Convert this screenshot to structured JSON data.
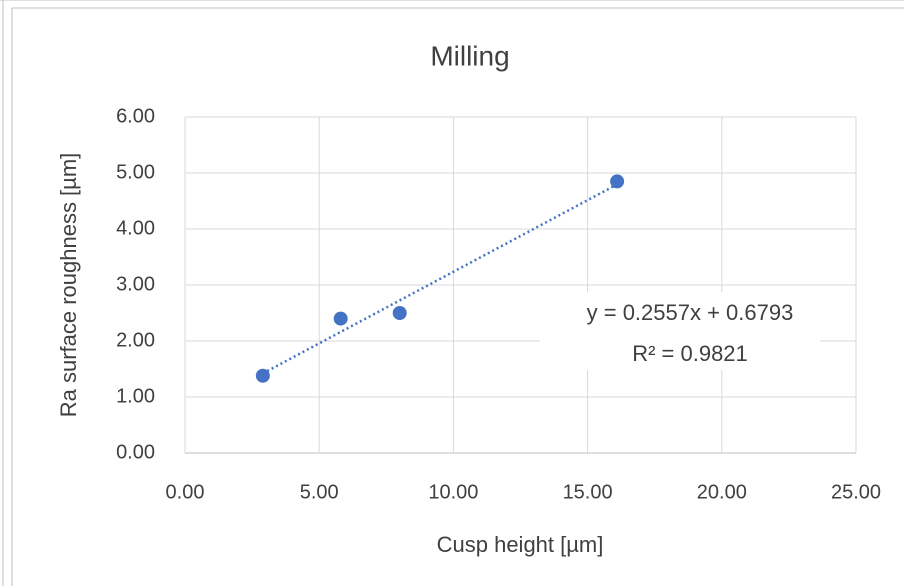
{
  "chart_data": {
    "type": "scatter",
    "title": "Milling",
    "xlabel": "Cusp height [µm]",
    "ylabel": "Ra surface roughness [µm]",
    "x": [
      2.9,
      5.8,
      8.0,
      16.1
    ],
    "values": [
      1.38,
      2.4,
      2.5,
      4.85
    ],
    "color": "#4472c4",
    "xlim": [
      0,
      25
    ],
    "ylim": [
      0,
      6
    ],
    "xticks": [
      {
        "value": 0,
        "label": "0.00"
      },
      {
        "value": 5,
        "label": "5.00"
      },
      {
        "value": 10,
        "label": "10.00"
      },
      {
        "value": 15,
        "label": "15.00"
      },
      {
        "value": 20,
        "label": "20.00"
      },
      {
        "value": 25,
        "label": "25.00"
      }
    ],
    "yticks": [
      {
        "value": 0,
        "label": "0.00"
      },
      {
        "value": 1,
        "label": "1.00"
      },
      {
        "value": 2,
        "label": "2.00"
      },
      {
        "value": 3,
        "label": "3.00"
      },
      {
        "value": 4,
        "label": "4.00"
      },
      {
        "value": 5,
        "label": "5.00"
      },
      {
        "value": 6,
        "label": "6.00"
      }
    ],
    "grid": true,
    "trendline": {
      "slope": 0.2557,
      "intercept": 0.6793,
      "label": "y = 0.2557x + 0.6793",
      "r2_label": "R² = 0.9821"
    }
  }
}
